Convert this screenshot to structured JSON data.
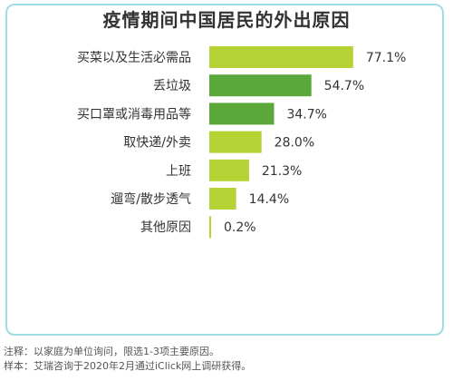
{
  "colors": {
    "frame": "#9fdde0",
    "bar_light": "#b5d334",
    "bar_dark": "#5aa83a"
  },
  "chart_data": {
    "type": "bar",
    "orientation": "horizontal",
    "title": "疫情期间中国居民的外出原因",
    "categories": [
      "买菜以及生活必需品",
      "丢垃圾",
      "买口罩或消毒用品等",
      "取快递/外卖",
      "上班",
      "遛弯/散步透气",
      "其他原因"
    ],
    "values": [
      77.1,
      54.7,
      34.7,
      28.0,
      21.3,
      14.4,
      0.2
    ],
    "value_labels": [
      "77.1%",
      "54.7%",
      "34.7%",
      "28.0%",
      "21.3%",
      "14.4%",
      "0.2%"
    ],
    "bar_colors": [
      "#b5d334",
      "#5aa83a",
      "#5aa83a",
      "#b5d334",
      "#b5d334",
      "#b5d334",
      "#b5d334"
    ],
    "xlim": [
      0,
      100
    ],
    "grid": false,
    "legend": false
  },
  "notes": {
    "note": "注释：以家庭为单位询问，限选1-3项主要原因。",
    "sample": "样本：艾瑞咨询于2020年2月通过iClick网上调研获得。"
  }
}
